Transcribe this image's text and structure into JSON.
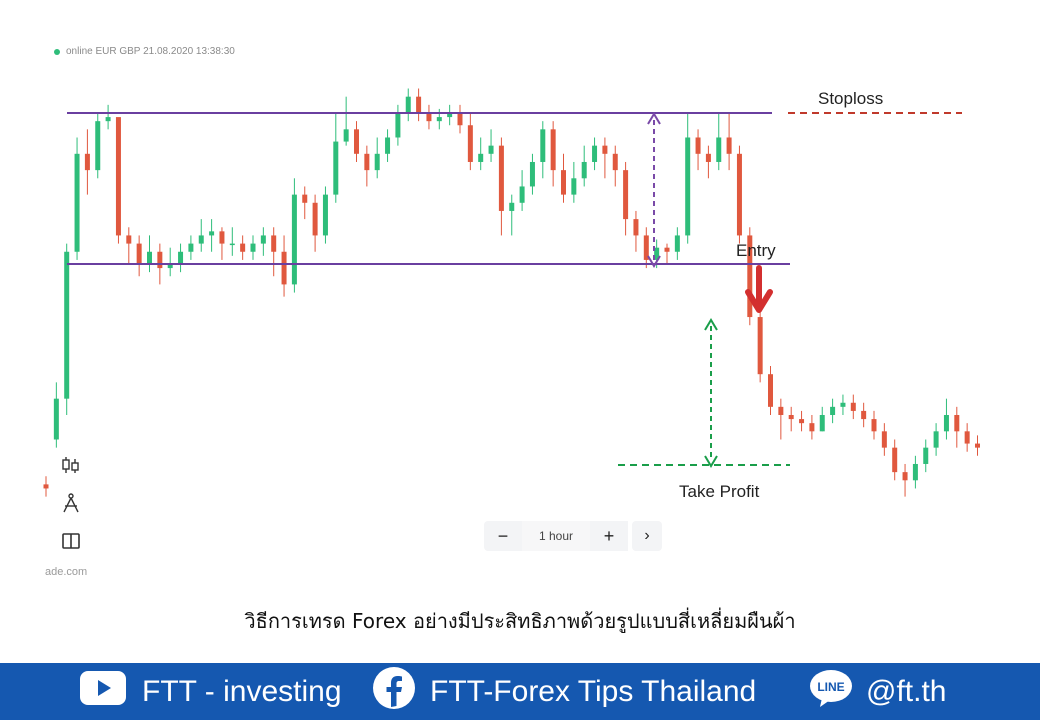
{
  "status_text": "online EUR GBP 21.08.2020 13:38:30",
  "site_partial": "ade.com",
  "zoom": {
    "minus": "−",
    "period": "1 hour",
    "plus": "+",
    "next": "›"
  },
  "caption": "วิธีการเทรด Forex อย่างมีประสิทธิภาพด้วยรูปแบบสี่เหลี่ยมผืนผ้า",
  "footer": {
    "youtube": "FTT - investing",
    "facebook": "FTT-Forex Tips Thailand",
    "line": "@ft.th",
    "line_badge": "LINE"
  },
  "colors": {
    "up": "#2ebd7a",
    "down": "#e0583e",
    "level": "#6a3fa0",
    "stoploss": "#c0392b",
    "takeprofit": "#1a9e4a",
    "footer": "#1558b0"
  },
  "chart_data": {
    "type": "candlestick",
    "annotations": {
      "stoploss": "Stoploss",
      "entry": "Entry",
      "takeprofit": "Take Profit"
    },
    "price_min": 0,
    "price_max": 100,
    "levels": {
      "resistance": 92,
      "support": 55,
      "stoploss": 92,
      "takeprofit": 5
    },
    "candles": [
      [
        1,
        0,
        3,
        -2
      ],
      [
        12,
        22,
        26,
        10
      ],
      [
        22,
        58,
        60,
        18
      ],
      [
        58,
        82,
        86,
        56
      ],
      [
        82,
        78,
        88,
        72
      ],
      [
        78,
        90,
        92,
        76
      ],
      [
        90,
        91,
        94,
        88
      ],
      [
        91,
        62,
        70,
        60
      ],
      [
        62,
        60,
        64,
        55
      ],
      [
        60,
        55,
        62,
        52
      ],
      [
        55,
        58,
        62,
        53
      ],
      [
        58,
        54,
        60,
        50
      ],
      [
        54,
        55,
        59,
        52
      ],
      [
        55,
        58,
        60,
        53
      ],
      [
        58,
        60,
        62,
        56
      ],
      [
        60,
        62,
        66,
        58
      ],
      [
        62,
        63,
        66,
        58
      ],
      [
        63,
        60,
        64,
        56
      ],
      [
        60,
        60,
        64,
        57
      ],
      [
        60,
        58,
        62,
        56
      ],
      [
        58,
        60,
        62,
        56
      ],
      [
        60,
        62,
        64,
        57
      ],
      [
        62,
        58,
        64,
        52
      ],
      [
        58,
        50,
        62,
        47
      ],
      [
        50,
        72,
        76,
        48
      ],
      [
        72,
        70,
        74,
        66
      ],
      [
        70,
        62,
        72,
        58
      ],
      [
        62,
        72,
        74,
        60
      ],
      [
        72,
        85,
        92,
        70
      ],
      [
        85,
        88,
        96,
        84
      ],
      [
        88,
        82,
        90,
        80
      ],
      [
        82,
        78,
        84,
        74
      ],
      [
        78,
        82,
        86,
        76
      ],
      [
        82,
        86,
        88,
        80
      ],
      [
        86,
        92,
        94,
        84
      ],
      [
        92,
        96,
        98,
        90
      ],
      [
        96,
        92,
        98,
        90
      ],
      [
        92,
        90,
        94,
        88
      ],
      [
        90,
        91,
        93,
        88
      ],
      [
        91,
        92,
        94,
        89
      ],
      [
        92,
        89,
        94,
        87
      ],
      [
        89,
        80,
        92,
        78
      ],
      [
        80,
        82,
        86,
        78
      ],
      [
        82,
        84,
        88,
        80
      ],
      [
        84,
        68,
        86,
        62
      ],
      [
        68,
        70,
        72,
        62
      ],
      [
        70,
        74,
        78,
        68
      ],
      [
        74,
        80,
        82,
        72
      ],
      [
        80,
        88,
        90,
        76
      ],
      [
        88,
        78,
        90,
        74
      ],
      [
        78,
        72,
        82,
        70
      ],
      [
        72,
        76,
        80,
        70
      ],
      [
        76,
        80,
        84,
        74
      ],
      [
        80,
        84,
        86,
        78
      ],
      [
        84,
        82,
        86,
        76
      ],
      [
        82,
        78,
        84,
        74
      ],
      [
        78,
        66,
        80,
        62
      ],
      [
        66,
        62,
        68,
        58
      ],
      [
        62,
        56,
        64,
        54
      ],
      [
        56,
        59,
        61,
        54
      ],
      [
        59,
        58,
        60,
        55
      ],
      [
        58,
        62,
        64,
        56
      ],
      [
        62,
        86,
        92,
        60
      ],
      [
        86,
        82,
        88,
        78
      ],
      [
        82,
        80,
        84,
        76
      ],
      [
        80,
        86,
        92,
        78
      ],
      [
        86,
        82,
        92,
        78
      ],
      [
        82,
        62,
        84,
        60
      ],
      [
        62,
        42,
        64,
        40
      ],
      [
        42,
        28,
        44,
        26
      ],
      [
        28,
        20,
        30,
        18
      ],
      [
        20,
        18,
        22,
        12
      ],
      [
        18,
        17,
        20,
        14
      ],
      [
        17,
        16,
        19,
        14
      ],
      [
        16,
        14,
        18,
        12
      ],
      [
        14,
        18,
        20,
        14
      ],
      [
        18,
        20,
        22,
        16
      ],
      [
        20,
        21,
        23,
        18
      ],
      [
        21,
        19,
        23,
        17
      ],
      [
        19,
        17,
        21,
        15
      ],
      [
        17,
        14,
        19,
        12
      ],
      [
        14,
        10,
        16,
        8
      ],
      [
        10,
        4,
        12,
        2
      ],
      [
        4,
        2,
        6,
        -2
      ],
      [
        2,
        6,
        8,
        0
      ],
      [
        6,
        10,
        12,
        4
      ],
      [
        10,
        14,
        16,
        8
      ],
      [
        14,
        18,
        22,
        12
      ],
      [
        18,
        14,
        20,
        10
      ],
      [
        14,
        11,
        16,
        9
      ],
      [
        11,
        10,
        13,
        8
      ]
    ]
  }
}
